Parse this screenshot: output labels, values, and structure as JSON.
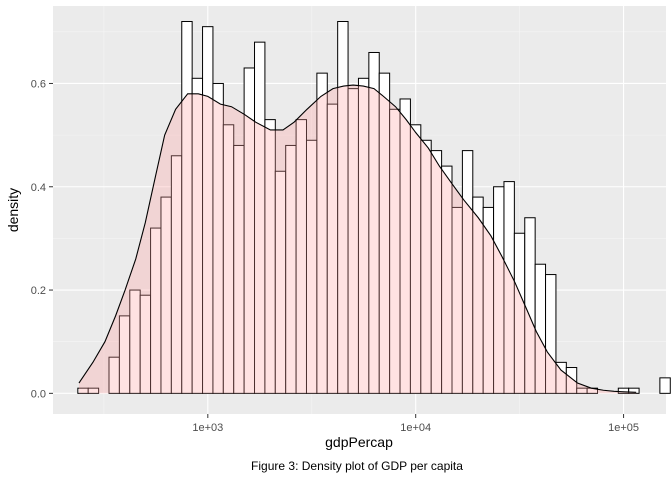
{
  "chart_data": {
    "type": "histogram+density",
    "caption": "Figure 3: Density plot of GDP per capita",
    "xlabel": "gdpPercap",
    "ylabel": "density",
    "x_scale": "log10",
    "xlim": [
      180,
      160000
    ],
    "ylim": [
      -0.04,
      0.75
    ],
    "x_ticks": [
      {
        "value": 1000,
        "label": "1e+03"
      },
      {
        "value": 10000,
        "label": "1e+04"
      },
      {
        "value": 100000,
        "label": "1e+05"
      }
    ],
    "y_ticks": [
      {
        "value": 0.0,
        "label": "0.0"
      },
      {
        "value": 0.2,
        "label": "0.2"
      },
      {
        "value": 0.4,
        "label": "0.4"
      },
      {
        "value": 0.6,
        "label": "0.6"
      }
    ],
    "grid": true,
    "bin_width_log10": 0.05,
    "first_bin_center": 251,
    "histogram_values": [
      0.01,
      0.01,
      0.0,
      0.07,
      0.15,
      0.2,
      0.19,
      0.32,
      0.38,
      0.46,
      0.72,
      0.61,
      0.71,
      0.6,
      0.52,
      0.48,
      0.63,
      0.68,
      0.53,
      0.43,
      0.48,
      0.53,
      0.49,
      0.62,
      0.56,
      0.72,
      0.59,
      0.61,
      0.66,
      0.62,
      0.55,
      0.57,
      0.52,
      0.49,
      0.47,
      0.44,
      0.36,
      0.47,
      0.38,
      0.36,
      0.4,
      0.41,
      0.31,
      0.34,
      0.25,
      0.23,
      0.06,
      0.05,
      0.01,
      0.01,
      0.0,
      0.0,
      0.01,
      0.01,
      0.0,
      0.0,
      0.03
    ],
    "density_curve": {
      "x": [
        240,
        280,
        320,
        360,
        400,
        450,
        500,
        560,
        620,
        700,
        800,
        900,
        1000,
        1150,
        1300,
        1500,
        1700,
        2000,
        2300,
        2600,
        3000,
        3500,
        4000,
        4500,
        5000,
        5600,
        6300,
        7000,
        8000,
        9000,
        10000,
        11500,
        13000,
        15000,
        17000,
        20000,
        23000,
        26000,
        30000,
        34000,
        38000,
        43000,
        50000,
        60000,
        70000,
        80000,
        90000,
        100000,
        115000
      ],
      "y": [
        0.02,
        0.06,
        0.1,
        0.15,
        0.2,
        0.26,
        0.33,
        0.42,
        0.5,
        0.55,
        0.58,
        0.58,
        0.575,
        0.56,
        0.555,
        0.54,
        0.525,
        0.51,
        0.51,
        0.525,
        0.55,
        0.575,
        0.59,
        0.595,
        0.597,
        0.595,
        0.59,
        0.575,
        0.555,
        0.53,
        0.505,
        0.475,
        0.44,
        0.405,
        0.375,
        0.34,
        0.305,
        0.265,
        0.215,
        0.165,
        0.12,
        0.08,
        0.045,
        0.02,
        0.01,
        0.006,
        0.004,
        0.003,
        0.002
      ]
    },
    "colors": {
      "panel": "#ebebeb",
      "grid_major": "#ffffff",
      "grid_minor": "#f5f5f5",
      "histogram_fill": "#ffffff",
      "histogram_stroke": "#000000",
      "density_fill": "#ff9e9e",
      "density_fill_opacity": 0.3,
      "density_stroke": "#000000"
    }
  }
}
